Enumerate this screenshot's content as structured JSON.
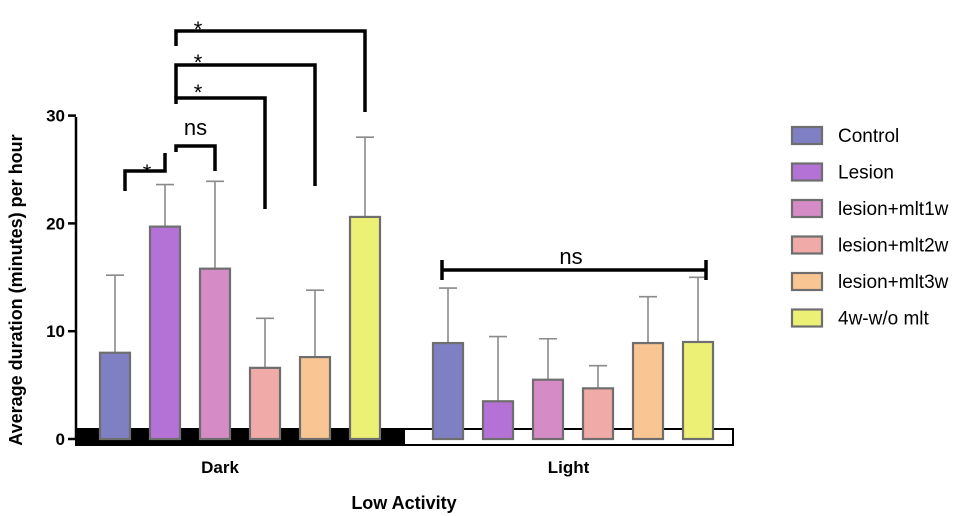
{
  "chart_data": {
    "type": "bar",
    "title": "",
    "xlabel": "Low Activity",
    "ylabel": "Average duration (minutes) per hour",
    "ylim": [
      0,
      30
    ],
    "yticks": [
      "0",
      "10",
      "20",
      "30"
    ],
    "categories": [
      "Dark",
      "Light"
    ],
    "error_bars": "upper SD whiskers",
    "series": [
      {
        "name": "Control",
        "color": "#7f7fc3",
        "values": [
          8.0,
          8.9
        ],
        "errors": [
          7.2,
          5.1
        ]
      },
      {
        "name": "Lesion",
        "color": "#b572d6",
        "values": [
          19.7,
          3.5
        ],
        "errors": [
          3.9,
          6.0
        ]
      },
      {
        "name": "lesion+mlt1w",
        "color": "#d58bc6",
        "values": [
          15.8,
          5.5
        ],
        "errors": [
          8.1,
          3.8
        ]
      },
      {
        "name": "lesion+mlt2w",
        "color": "#f0aaa8",
        "values": [
          6.6,
          4.7
        ],
        "errors": [
          4.6,
          2.1
        ]
      },
      {
        "name": "lesion+mlt3w",
        "color": "#f9c592",
        "values": [
          7.6,
          8.9
        ],
        "errors": [
          6.2,
          4.3
        ]
      },
      {
        "name": "4w-w/o mlt",
        "color": "#ecf075",
        "values": [
          20.6,
          9.0
        ],
        "errors": [
          7.4,
          6.0
        ]
      }
    ],
    "group_bar_colors": [
      "#000000",
      "#ffffff"
    ],
    "legend": {
      "position": "right"
    },
    "grid": false,
    "annotations": [
      {
        "text": "*",
        "from_series": "Control",
        "to_series": "Lesion",
        "category": "Dark"
      },
      {
        "text": "ns",
        "from_series": "Lesion",
        "to_series": "lesion+mlt1w",
        "category": "Dark"
      },
      {
        "text": "*",
        "from_series": "Lesion",
        "to_series": "lesion+mlt2w",
        "category": "Dark"
      },
      {
        "text": "*",
        "from_series": "Lesion",
        "to_series": "lesion+mlt3w",
        "category": "Dark"
      },
      {
        "text": "*",
        "from_series": "Lesion",
        "to_series": "4w-w/o mlt",
        "category": "Dark"
      },
      {
        "text": "ns",
        "from_series": "Control",
        "to_series": "4w-w/o mlt",
        "category": "Light"
      }
    ]
  }
}
